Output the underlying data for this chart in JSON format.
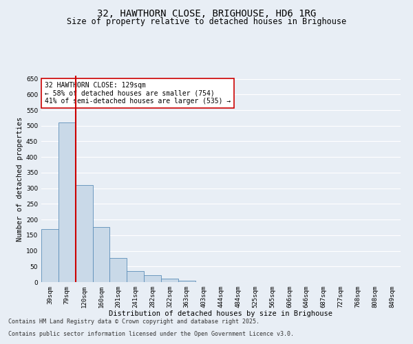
{
  "title_line1": "32, HAWTHORN CLOSE, BRIGHOUSE, HD6 1RG",
  "title_line2": "Size of property relative to detached houses in Brighouse",
  "xlabel": "Distribution of detached houses by size in Brighouse",
  "ylabel": "Number of detached properties",
  "categories": [
    "39sqm",
    "79sqm",
    "120sqm",
    "160sqm",
    "201sqm",
    "241sqm",
    "282sqm",
    "322sqm",
    "363sqm",
    "403sqm",
    "444sqm",
    "484sqm",
    "525sqm",
    "565sqm",
    "606sqm",
    "646sqm",
    "687sqm",
    "727sqm",
    "768sqm",
    "808sqm",
    "849sqm"
  ],
  "values": [
    170,
    510,
    310,
    175,
    78,
    35,
    22,
    10,
    5,
    0,
    0,
    0,
    0,
    0,
    0,
    0,
    0,
    0,
    0,
    0,
    0
  ],
  "bar_color": "#c9d9e8",
  "bar_edge_color": "#5b8db8",
  "vline_color": "#cc0000",
  "vline_x_index": 1.5,
  "annotation_text": "32 HAWTHORN CLOSE: 129sqm\n← 58% of detached houses are smaller (754)\n41% of semi-detached houses are larger (535) →",
  "annotation_box_color": "#ffffff",
  "annotation_box_edge": "#cc0000",
  "ylim": [
    0,
    660
  ],
  "yticks": [
    0,
    50,
    100,
    150,
    200,
    250,
    300,
    350,
    400,
    450,
    500,
    550,
    600,
    650
  ],
  "bg_color": "#e8eef5",
  "grid_color": "#ffffff",
  "footer_line1": "Contains HM Land Registry data © Crown copyright and database right 2025.",
  "footer_line2": "Contains public sector information licensed under the Open Government Licence v3.0.",
  "title_fontsize": 10,
  "subtitle_fontsize": 8.5,
  "axis_label_fontsize": 7.5,
  "tick_fontsize": 6.5,
  "annotation_fontsize": 7,
  "footer_fontsize": 6
}
